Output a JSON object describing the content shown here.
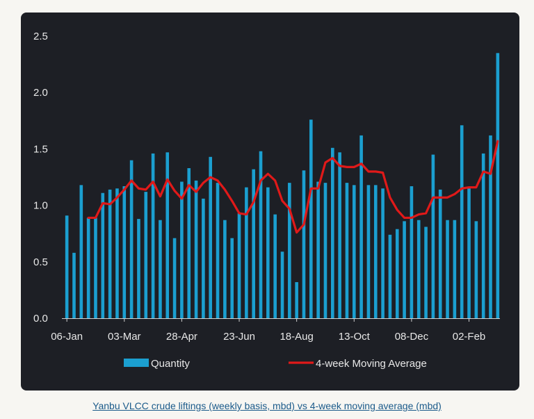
{
  "caption": "Yanbu VLCC crude liftings (weekly basis, mbd) vs 4-week moving average (mbd)",
  "colors": {
    "background": "#1d1f25",
    "bar": "#1b9fd0",
    "line": "#e01919",
    "axis": "#d0d0d0",
    "text": "#e8e8e8"
  },
  "chart_data": {
    "type": "bar",
    "title": "",
    "xlabel": "",
    "ylabel": "",
    "ylim": [
      0,
      2.5
    ],
    "yticks": [
      "0.0",
      "0.5",
      "1.0",
      "1.5",
      "2.0",
      "2.5"
    ],
    "xtick_labels": [
      "06-Jan",
      "03-Mar",
      "28-Apr",
      "23-Jun",
      "18-Aug",
      "13-Oct",
      "08-Dec",
      "02-Feb"
    ],
    "xtick_indices": [
      0,
      8,
      16,
      24,
      32,
      40,
      48,
      56
    ],
    "legend": [
      "Quantity",
      "4-week Moving Average"
    ],
    "series": [
      {
        "name": "Quantity",
        "type": "bar",
        "values": [
          0.91,
          0.58,
          1.18,
          0.89,
          0.89,
          1.11,
          1.14,
          1.15,
          1.17,
          1.4,
          0.88,
          1.12,
          1.46,
          0.87,
          1.47,
          0.71,
          1.21,
          1.33,
          1.22,
          1.06,
          1.43,
          1.2,
          0.87,
          0.71,
          0.93,
          1.16,
          1.32,
          1.48,
          1.16,
          0.92,
          0.59,
          1.2,
          0.32,
          1.31,
          1.76,
          1.21,
          1.2,
          1.51,
          1.47,
          1.2,
          1.18,
          1.62,
          1.18,
          1.18,
          1.15,
          0.74,
          0.79,
          0.86,
          1.17,
          0.87,
          0.81,
          1.45,
          1.14,
          0.87,
          0.87,
          1.71,
          1.15,
          0.86,
          1.46,
          1.62,
          2.35
        ]
      },
      {
        "name": "4-week Moving Average",
        "type": "line",
        "values": [
          null,
          null,
          null,
          0.89,
          0.89,
          1.02,
          1.01,
          1.07,
          1.14,
          1.22,
          1.15,
          1.14,
          1.21,
          1.08,
          1.23,
          1.13,
          1.06,
          1.18,
          1.12,
          1.2,
          1.25,
          1.22,
          1.14,
          1.04,
          0.93,
          0.92,
          1.03,
          1.22,
          1.28,
          1.22,
          1.04,
          0.97,
          0.76,
          0.83,
          1.15,
          1.15,
          1.38,
          1.42,
          1.35,
          1.34,
          1.34,
          1.37,
          1.3,
          1.3,
          1.29,
          1.07,
          0.96,
          0.89,
          0.89,
          0.92,
          0.93,
          1.07,
          1.07,
          1.07,
          1.1,
          1.15,
          1.16,
          1.16,
          1.3,
          1.28,
          1.57
        ]
      }
    ]
  }
}
